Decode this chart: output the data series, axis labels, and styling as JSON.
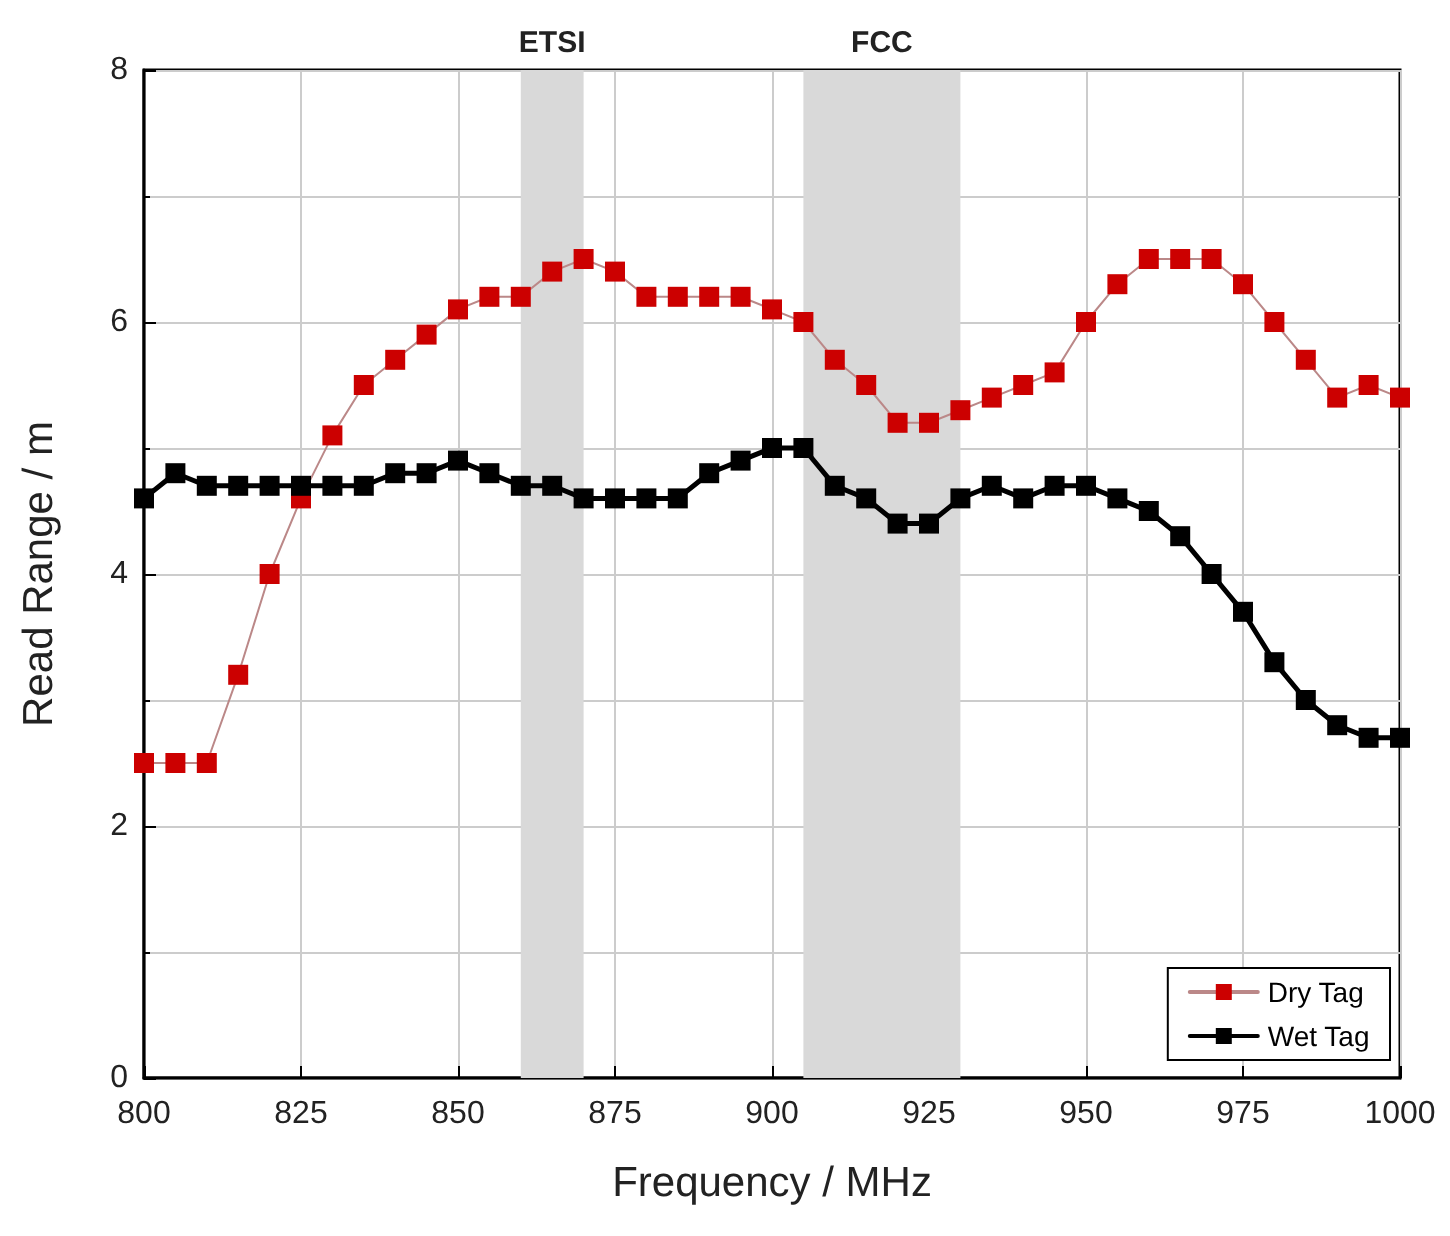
{
  "chart_data": {
    "type": "line",
    "xlabel": "Frequency / MHz",
    "ylabel": "Read Range / m",
    "x": [
      800,
      805,
      810,
      815,
      820,
      825,
      830,
      835,
      840,
      845,
      850,
      855,
      860,
      865,
      870,
      875,
      880,
      885,
      890,
      895,
      900,
      905,
      910,
      915,
      920,
      925,
      930,
      935,
      940,
      945,
      950,
      955,
      960,
      965,
      970,
      975,
      980,
      985,
      990,
      995,
      1000
    ],
    "series": [
      {
        "name": "Dry Tag",
        "color": "#cc0000",
        "values": [
          2.5,
          2.5,
          2.5,
          3.2,
          4.0,
          4.6,
          5.1,
          5.5,
          5.7,
          5.9,
          6.1,
          6.2,
          6.2,
          6.4,
          6.5,
          6.4,
          6.2,
          6.2,
          6.2,
          6.2,
          6.1,
          6.0,
          5.7,
          5.5,
          5.2,
          5.2,
          5.3,
          5.4,
          5.5,
          5.6,
          6.0,
          6.3,
          6.5,
          6.5,
          6.5,
          6.3,
          6.0,
          5.7,
          5.4,
          5.5,
          5.4
        ]
      },
      {
        "name": "Wet Tag",
        "color": "#000000",
        "values": [
          4.6,
          4.8,
          4.7,
          4.7,
          4.7,
          4.7,
          4.7,
          4.7,
          4.8,
          4.8,
          4.9,
          4.8,
          4.7,
          4.7,
          4.6,
          4.6,
          4.6,
          4.6,
          4.8,
          4.9,
          5.0,
          5.0,
          4.7,
          4.6,
          4.4,
          4.4,
          4.6,
          4.7,
          4.6,
          4.7,
          4.7,
          4.6,
          4.5,
          4.3,
          4.0,
          3.7,
          3.3,
          3.0,
          2.8,
          2.7,
          2.7
        ]
      }
    ],
    "xlim": [
      800,
      1000
    ],
    "xticks": [
      800,
      825,
      850,
      875,
      900,
      925,
      950,
      975,
      1000
    ],
    "ylim": [
      0,
      8
    ],
    "yticks": [
      0,
      2,
      4,
      6,
      8
    ],
    "bands": [
      {
        "axis": "x",
        "from": 860,
        "to": 870,
        "label": "ETSI",
        "color": "#d9d9d9"
      },
      {
        "axis": "x",
        "from": 905,
        "to": 930,
        "label": "FCC",
        "color": "#d9d9d9"
      }
    ],
    "grid": true,
    "legend": "bottom right",
    "marker": "square",
    "line_style": "solid"
  }
}
